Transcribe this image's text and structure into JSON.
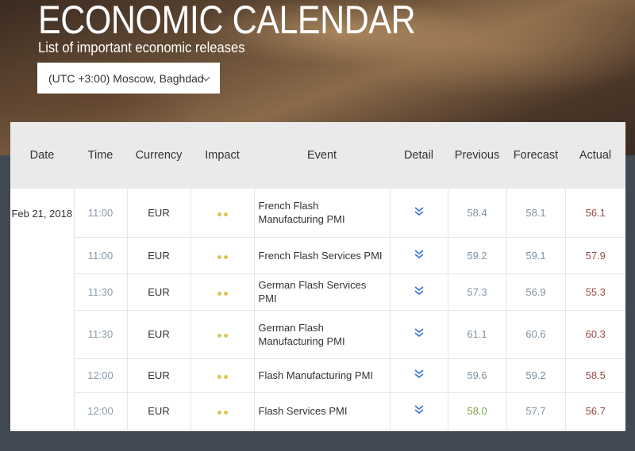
{
  "header": {
    "title": "ECONOMIC CALENDAR",
    "subtitle": "List of important economic releases",
    "timezone": "(UTC +3:00) Moscow, Baghdad"
  },
  "table": {
    "columns": [
      "Date",
      "Time",
      "Currency",
      "Impact",
      "Event",
      "Detail",
      "Previous",
      "Forecast",
      "Actual"
    ],
    "date": "Feb 21, 2018",
    "rows": [
      {
        "time": "11:00",
        "currency": "EUR",
        "event": "French Flash Manufacturing PMI",
        "previous": "58.4",
        "forecast": "58.1",
        "actual": "56.1",
        "impact": 2
      },
      {
        "time": "11:00",
        "currency": "EUR",
        "event": "French Flash Services PMI",
        "previous": "59.2",
        "forecast": "59.1",
        "actual": "57.9",
        "impact": 2
      },
      {
        "time": "11:30",
        "currency": "EUR",
        "event": "German Flash Services PMI",
        "previous": "57.3",
        "forecast": "56.9",
        "actual": "55.3",
        "impact": 2
      },
      {
        "time": "11:30",
        "currency": "EUR",
        "event": "German Flash Manufacturing PMI",
        "previous": "61.1",
        "forecast": "60.6",
        "actual": "60.3",
        "impact": 2
      },
      {
        "time": "12:00",
        "currency": "EUR",
        "event": "Flash Manufacturing PMI",
        "previous": "59.6",
        "forecast": "59.2",
        "actual": "58.5",
        "impact": 2
      },
      {
        "time": "12:00",
        "currency": "EUR",
        "event": "Flash Services PMI",
        "previous": "58.0",
        "forecast": "57.7",
        "actual": "56.7",
        "impact": 2
      }
    ]
  },
  "colors": {
    "impact_dot": "#d8c657",
    "actual": "#9a4a4a",
    "previous_green": "#7aa34a",
    "detail_icon": "#2f6fd6"
  },
  "icons": {
    "detail": "double-chevron-down-icon",
    "select": "chevron-down-icon"
  }
}
